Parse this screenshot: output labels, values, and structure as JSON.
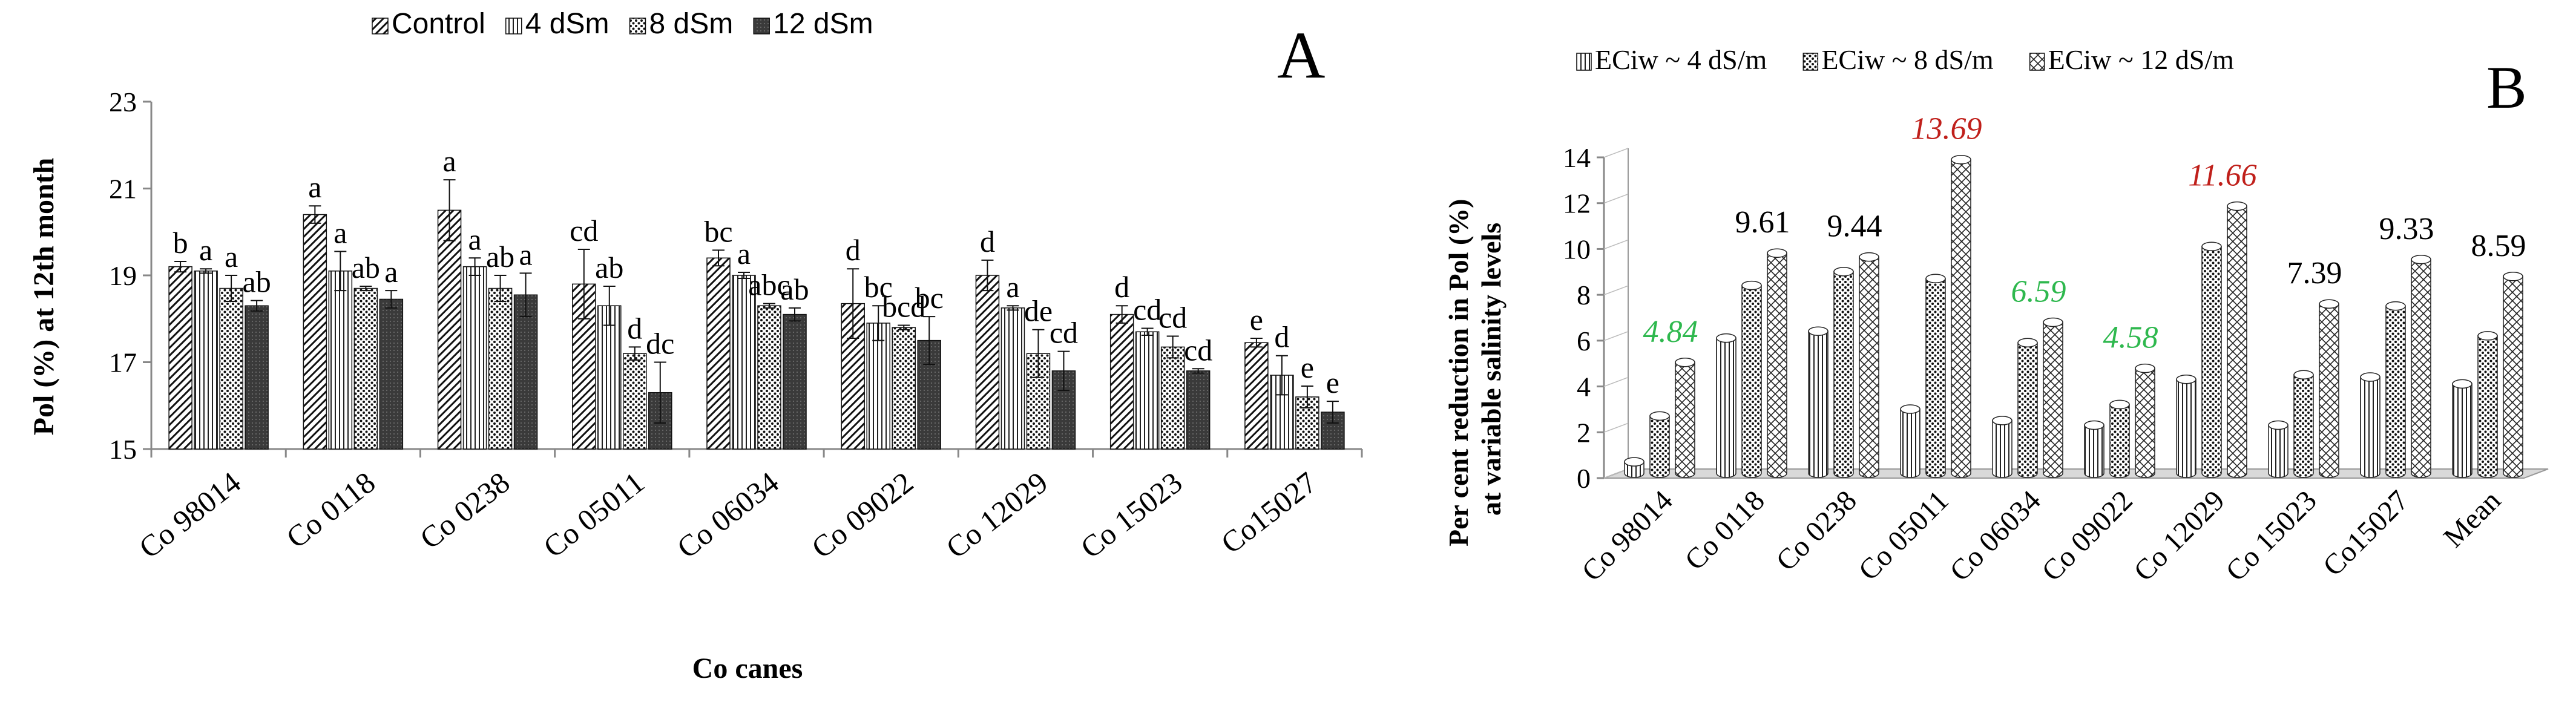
{
  "chart_data": [
    {
      "panel_label": "A",
      "type": "bar",
      "xlabel": "Co canes",
      "ylabel": "Pol (%) at 12th month",
      "ylim": [
        15,
        23
      ],
      "yticks": [
        15,
        17,
        19,
        21,
        23
      ],
      "grid": false,
      "legend_position": "top",
      "categories": [
        "Co 98014",
        "Co 0118",
        "Co 0238",
        "Co 05011",
        "Co 06034",
        "Co 09022",
        "Co 12029",
        "Co 15023",
        "Co15027"
      ],
      "series": [
        {
          "name": "Control",
          "pattern": "hatch-diagonal",
          "values": [
            19.2,
            20.4,
            20.5,
            18.8,
            19.4,
            18.35,
            19.0,
            18.1,
            17.45
          ],
          "errors": [
            0.12,
            0.2,
            0.7,
            0.8,
            0.18,
            0.8,
            0.35,
            0.2,
            0.1
          ]
        },
        {
          "name": "4 dSm",
          "pattern": "hatch-vertical",
          "values": [
            19.1,
            19.1,
            19.2,
            18.3,
            19.0,
            17.9,
            18.25,
            17.7,
            16.7
          ],
          "errors": [
            0.05,
            0.45,
            0.2,
            0.45,
            0.07,
            0.4,
            0.05,
            0.08,
            0.45
          ]
        },
        {
          "name": "8 dSm",
          "pattern": "dots",
          "values": [
            18.7,
            18.7,
            18.7,
            17.2,
            18.3,
            17.8,
            17.2,
            17.35,
            16.2
          ],
          "errors": [
            0.3,
            0.05,
            0.3,
            0.15,
            0.05,
            0.05,
            0.55,
            0.25,
            0.25
          ]
        },
        {
          "name": "12 dSm",
          "pattern": "solid-dark",
          "values": [
            18.3,
            18.45,
            18.55,
            16.3,
            18.1,
            17.5,
            16.8,
            16.8,
            15.85
          ],
          "errors": [
            0.12,
            0.2,
            0.5,
            0.7,
            0.15,
            0.55,
            0.45,
            0.05,
            0.25
          ]
        }
      ],
      "annotations": [
        [
          "b",
          "a",
          "a",
          "ab"
        ],
        [
          "a",
          "a",
          "ab",
          "a"
        ],
        [
          "a",
          "a",
          "ab",
          "a"
        ],
        [
          "cd",
          "ab",
          "d",
          "dc"
        ],
        [
          "bc",
          "a",
          "abc",
          "ab"
        ],
        [
          "d",
          "bc",
          "bcd",
          "bc"
        ],
        [
          "d",
          "a",
          "de",
          "cd"
        ],
        [
          "d",
          "cd",
          "cd",
          "cd"
        ],
        [
          "e",
          "d",
          "e",
          "e"
        ]
      ]
    },
    {
      "panel_label": "B",
      "type": "bar",
      "style": "3d-cylinder",
      "xlabel": "",
      "ylabel": "Per cent reduction in Pol (%) at variable salinity levels",
      "ylim": [
        0,
        14
      ],
      "yticks": [
        0,
        2,
        4,
        6,
        8,
        10,
        12,
        14
      ],
      "grid": false,
      "legend_position": "top",
      "categories": [
        "Co 98014",
        "Co 0118",
        "Co 0238",
        "Co 05011",
        "Co 06034",
        "Co 09022",
        "Co 12029",
        "Co 15023",
        "Co15027",
        "Mean"
      ],
      "series": [
        {
          "name": "ECiw ~ 4 dS/m",
          "pattern": "hatch-vertical",
          "values": [
            0.5,
            5.9,
            6.2,
            2.8,
            2.3,
            2.1,
            4.1,
            2.1,
            4.2,
            3.9
          ]
        },
        {
          "name": "ECiw ~ 8 dS/m",
          "pattern": "dots",
          "values": [
            2.5,
            8.2,
            8.8,
            8.5,
            5.7,
            3.0,
            9.9,
            4.3,
            7.3,
            6.0
          ]
        },
        {
          "name": "ECiw ~ 12 dS/m",
          "pattern": "hatch-diamond",
          "values": [
            4.84,
            9.61,
            9.44,
            13.69,
            6.59,
            4.58,
            11.66,
            7.39,
            9.33,
            8.59
          ]
        }
      ],
      "value_labels": [
        {
          "text": "4.84",
          "color": "#2eb84e"
        },
        {
          "text": "9.61",
          "color": "#000000"
        },
        {
          "text": "9.44",
          "color": "#000000"
        },
        {
          "text": "13.69",
          "color": "#c0201b"
        },
        {
          "text": "6.59",
          "color": "#2eb84e"
        },
        {
          "text": "4.58",
          "color": "#2eb84e"
        },
        {
          "text": "11.66",
          "color": "#c0201b"
        },
        {
          "text": "7.39",
          "color": "#000000"
        },
        {
          "text": "9.33",
          "color": "#000000"
        },
        {
          "text": "8.59",
          "color": "#000000"
        }
      ]
    }
  ]
}
